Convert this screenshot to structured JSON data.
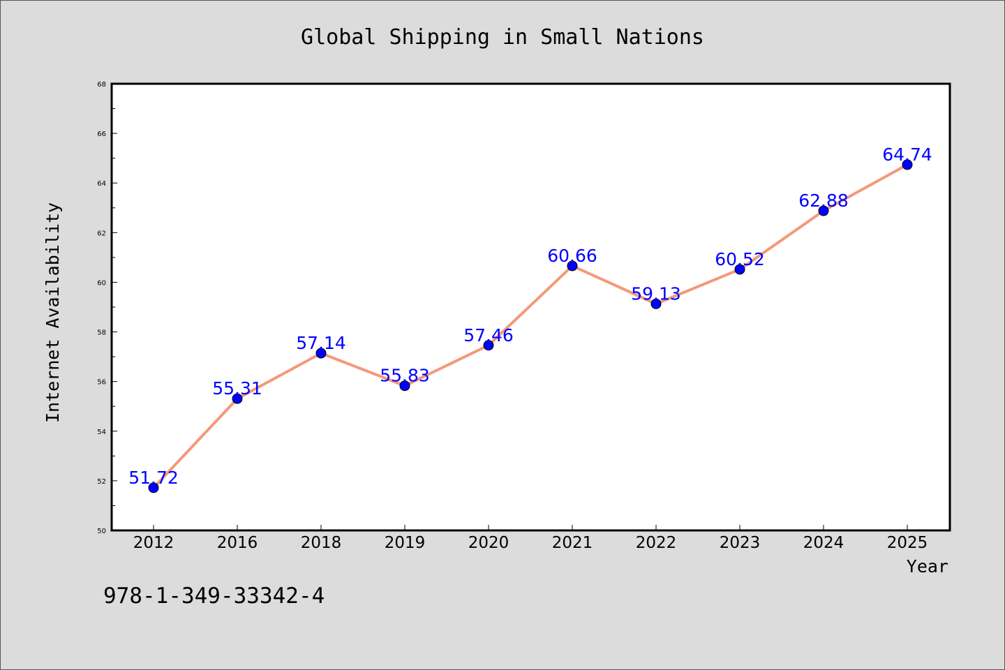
{
  "chart_data": {
    "type": "line",
    "title": "Global Shipping in Small Nations",
    "xlabel": "Year",
    "ylabel": "Internet Availability",
    "categories": [
      "2012",
      "2016",
      "2018",
      "2019",
      "2020",
      "2021",
      "2022",
      "2023",
      "2024",
      "2025"
    ],
    "series": [
      {
        "values": [
          51.72,
          55.31,
          57.14,
          55.83,
          57.46,
          60.66,
          59.13,
          60.52,
          62.88,
          64.74
        ],
        "data_labels": [
          "51.72",
          "55.31",
          "57.14",
          "55.83",
          "57.46",
          "60.66",
          "59.13",
          "60.52",
          "62.88",
          "64.74"
        ],
        "line_color": "#f4997a",
        "marker_color": "#0000ff"
      }
    ],
    "ylim": [
      50,
      68
    ],
    "yticks": [
      50,
      52,
      54,
      56,
      58,
      60,
      62,
      64,
      66,
      68
    ],
    "ytick_labels": [
      "50",
      "52",
      "54",
      "56",
      "58",
      "60",
      "62",
      "64",
      "66",
      "68"
    ],
    "grid": false,
    "legend": "none",
    "background_color": "#dcdcdc",
    "plot_background_color": "#ffffff"
  },
  "footer": {
    "isbn": "978-1-349-33342-4"
  }
}
